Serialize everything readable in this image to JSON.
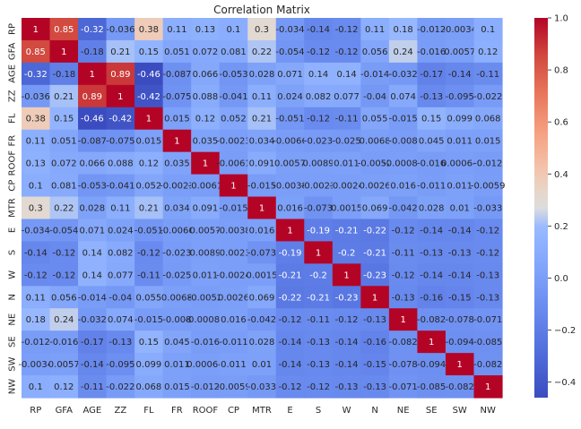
{
  "chart_data": {
    "type": "heatmap",
    "title": "Correlation Matrix",
    "labels": [
      "RP",
      "GFA",
      "AGE",
      "ZZ",
      "FL",
      "FR",
      "ROOF",
      "CP",
      "MTR",
      "E",
      "S",
      "W",
      "N",
      "NE",
      "SE",
      "SW",
      "NW"
    ],
    "value_labels": [
      [
        "1",
        "0.85",
        "-0.32",
        "-0.036",
        "0.38",
        "0.11",
        "0.13",
        "0.1",
        "0.3",
        "-0.034",
        "-0.14",
        "-0.12",
        "0.11",
        "0.18",
        "-0.012",
        "-0.0034",
        "0.1"
      ],
      [
        "0.85",
        "1",
        "-0.18",
        "0.21",
        "0.15",
        "0.051",
        "0.072",
        "0.081",
        "0.22",
        "-0.054",
        "-0.12",
        "-0.12",
        "0.056",
        "0.24",
        "-0.016",
        "0.0057",
        "0.12"
      ],
      [
        "-0.32",
        "-0.18",
        "1",
        "0.89",
        "-0.46",
        "-0.087",
        "0.066",
        "-0.053",
        "0.028",
        "0.071",
        "0.14",
        "0.14",
        "-0.014",
        "-0.032",
        "-0.17",
        "-0.14",
        "-0.11"
      ],
      [
        "-0.036",
        "0.21",
        "0.89",
        "1",
        "-0.42",
        "-0.075",
        "0.088",
        "-0.041",
        "0.11",
        "0.024",
        "0.082",
        "0.077",
        "-0.04",
        "0.074",
        "-0.13",
        "-0.095",
        "-0.022"
      ],
      [
        "0.38",
        "0.15",
        "-0.46",
        "-0.42",
        "1",
        "0.015",
        "0.12",
        "0.052",
        "0.21",
        "-0.051",
        "-0.12",
        "-0.11",
        "0.055",
        "-0.015",
        "0.15",
        "0.099",
        "0.068"
      ],
      [
        "0.11",
        "0.051",
        "-0.087",
        "-0.075",
        "0.015",
        "1",
        "0.035",
        "-0.0023",
        "0.034",
        "-0.0066",
        "-0.023",
        "-0.025",
        "0.0068",
        "-0.008",
        "0.045",
        "0.011",
        "0.015"
      ],
      [
        "0.13",
        "0.072",
        "0.066",
        "0.088",
        "0.12",
        "0.035",
        "1",
        "-0.0061",
        "0.091",
        "0.0057",
        "0.0089",
        "0.011",
        "-0.0052",
        "-0.00082",
        "-0.016",
        "0.00064",
        "-0.012"
      ],
      [
        "0.1",
        "0.081",
        "-0.053",
        "-0.041",
        "0.052",
        "-0.0023",
        "-0.0061",
        "1",
        "-0.015",
        "-0.0038",
        "-0.0023",
        "-0.0024",
        "0.0026",
        "0.016",
        "-0.011",
        "0.011",
        "-0.0059"
      ],
      [
        "0.3",
        "0.22",
        "0.028",
        "0.11",
        "0.21",
        "0.034",
        "0.091",
        "-0.015",
        "1",
        "0.016",
        "-0.073",
        "0.0015",
        "0.069",
        "-0.042",
        "0.028",
        "0.01",
        "-0.033"
      ],
      [
        "-0.034",
        "-0.054",
        "0.071",
        "0.024",
        "-0.051",
        "-0.0066",
        "0.0057",
        "-0.0038",
        "0.016",
        "1",
        "-0.19",
        "-0.21",
        "-0.22",
        "-0.12",
        "-0.14",
        "-0.14",
        "-0.12"
      ],
      [
        "-0.14",
        "-0.12",
        "0.14",
        "0.082",
        "-0.12",
        "-0.023",
        "0.0089",
        "-0.0023",
        "-0.073",
        "-0.19",
        "1",
        "-0.2",
        "-0.21",
        "-0.11",
        "-0.13",
        "-0.13",
        "-0.12"
      ],
      [
        "-0.12",
        "-0.12",
        "0.14",
        "0.077",
        "-0.11",
        "-0.025",
        "0.011",
        "-0.0024",
        "0.0015",
        "-0.21",
        "-0.2",
        "1",
        "-0.23",
        "-0.12",
        "-0.14",
        "-0.14",
        "-0.13"
      ],
      [
        "0.11",
        "0.056",
        "-0.014",
        "-0.04",
        "0.055",
        "0.0068",
        "-0.0052",
        "0.0026",
        "0.069",
        "-0.22",
        "-0.21",
        "-0.23",
        "1",
        "-0.13",
        "-0.16",
        "-0.15",
        "-0.13"
      ],
      [
        "0.18",
        "0.24",
        "-0.032",
        "0.074",
        "-0.015",
        "-0.008",
        "-0.00082",
        "0.016",
        "-0.042",
        "-0.12",
        "-0.11",
        "-0.12",
        "-0.13",
        "1",
        "-0.082",
        "-0.078",
        "-0.071"
      ],
      [
        "-0.012",
        "-0.016",
        "-0.17",
        "-0.13",
        "0.15",
        "0.045",
        "-0.016",
        "-0.011",
        "0.028",
        "-0.14",
        "-0.13",
        "-0.14",
        "-0.16",
        "-0.082",
        "1",
        "-0.094",
        "-0.085"
      ],
      [
        "-0.0034",
        "0.0057",
        "-0.14",
        "-0.095",
        "0.099",
        "0.011",
        "0.00064",
        "0.011",
        "0.01",
        "-0.14",
        "-0.13",
        "-0.14",
        "-0.15",
        "-0.078",
        "-0.094",
        "1",
        "-0.082"
      ],
      [
        "0.1",
        "0.12",
        "-0.11",
        "-0.022",
        "0.068",
        "0.015",
        "-0.012",
        "-0.0059",
        "-0.033",
        "-0.12",
        "-0.12",
        "-0.13",
        "-0.13",
        "-0.071",
        "-0.085",
        "-0.082",
        "1"
      ]
    ],
    "value_range": [
      -0.46,
      1
    ],
    "colormap": "coolwarm",
    "colors": {
      "low": "#3b4cc0",
      "mid": "#dddddd",
      "high": "#b40426"
    },
    "colorbar_ticks": [
      "1.0",
      "0.8",
      "0.6",
      "0.4",
      "0.2",
      "0.0",
      "−0.2",
      "−0.4"
    ],
    "legend": "colorbar-right"
  }
}
